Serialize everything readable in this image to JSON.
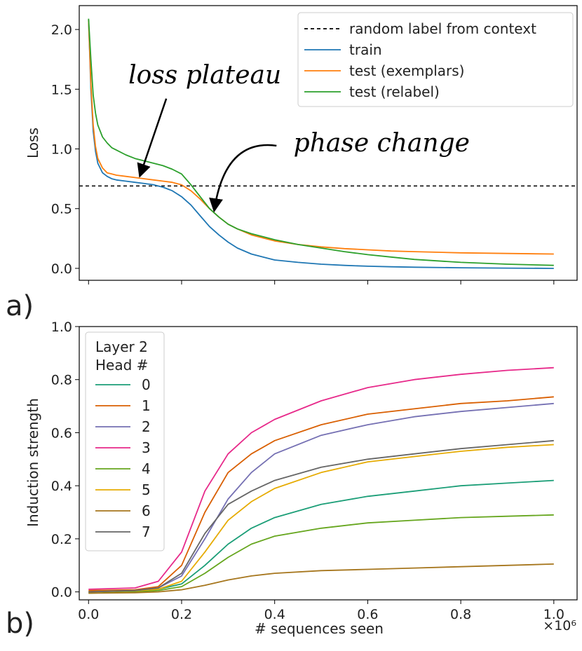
{
  "panel_labels": {
    "a": "a)",
    "b": "b)"
  },
  "chart_data": [
    {
      "type": "line",
      "ylabel": "Loss",
      "xlabel": "",
      "xlim": [
        -0.02,
        1.05
      ],
      "ylim": [
        -0.1,
        2.2
      ],
      "xticks": [
        0.0,
        0.2,
        0.4,
        0.6,
        0.8,
        1.0
      ],
      "show_xtick_labels": false,
      "yticks": [
        0.0,
        0.5,
        1.0,
        1.5,
        2.0
      ],
      "ytick_labels": [
        "0.0",
        "0.5",
        "1.0",
        "1.5",
        "2.0"
      ],
      "grid": false,
      "legend_position": "top-right",
      "hline": {
        "name": "random label from context",
        "y": 0.69,
        "color": "#000000",
        "style": "dashed"
      },
      "annotations": [
        {
          "text": "loss plateau",
          "x_text": 0.25,
          "y_text": 1.55,
          "x_arrow": 0.11,
          "y_arrow": 0.77
        },
        {
          "text": "phase change",
          "x_text": 0.63,
          "y_text": 0.98,
          "x_arrow": 0.27,
          "y_arrow": 0.48
        }
      ],
      "series": [
        {
          "name": "train",
          "color": "#1f77b4",
          "x": [
            0.0,
            0.005,
            0.01,
            0.015,
            0.02,
            0.03,
            0.04,
            0.05,
            0.06,
            0.08,
            0.1,
            0.12,
            0.14,
            0.16,
            0.18,
            0.2,
            0.22,
            0.24,
            0.26,
            0.28,
            0.3,
            0.32,
            0.35,
            0.4,
            0.45,
            0.5,
            0.55,
            0.6,
            0.65,
            0.7,
            0.8,
            0.9,
            1.0
          ],
          "y": [
            2.08,
            1.5,
            1.15,
            0.98,
            0.88,
            0.8,
            0.77,
            0.75,
            0.74,
            0.73,
            0.72,
            0.71,
            0.7,
            0.68,
            0.65,
            0.6,
            0.53,
            0.44,
            0.35,
            0.28,
            0.22,
            0.17,
            0.12,
            0.07,
            0.05,
            0.035,
            0.025,
            0.018,
            0.013,
            0.01,
            0.005,
            0.002,
            0.0
          ]
        },
        {
          "name": "test (exemplars)",
          "color": "#ff7f0e",
          "x": [
            0.0,
            0.005,
            0.01,
            0.015,
            0.02,
            0.03,
            0.04,
            0.05,
            0.06,
            0.08,
            0.1,
            0.12,
            0.14,
            0.16,
            0.18,
            0.2,
            0.22,
            0.24,
            0.26,
            0.28,
            0.3,
            0.32,
            0.35,
            0.4,
            0.45,
            0.5,
            0.55,
            0.6,
            0.65,
            0.7,
            0.8,
            0.9,
            1.0
          ],
          "y": [
            2.08,
            1.55,
            1.2,
            1.02,
            0.92,
            0.84,
            0.8,
            0.79,
            0.78,
            0.77,
            0.76,
            0.75,
            0.74,
            0.73,
            0.72,
            0.7,
            0.65,
            0.58,
            0.5,
            0.43,
            0.37,
            0.33,
            0.28,
            0.23,
            0.2,
            0.18,
            0.165,
            0.155,
            0.145,
            0.14,
            0.13,
            0.125,
            0.12
          ]
        },
        {
          "name": "test (relabel)",
          "color": "#2ca02c",
          "x": [
            0.0,
            0.005,
            0.01,
            0.015,
            0.02,
            0.03,
            0.04,
            0.05,
            0.06,
            0.08,
            0.1,
            0.12,
            0.14,
            0.16,
            0.18,
            0.2,
            0.22,
            0.24,
            0.26,
            0.28,
            0.3,
            0.32,
            0.35,
            0.4,
            0.45,
            0.5,
            0.55,
            0.6,
            0.65,
            0.7,
            0.8,
            0.9,
            1.0
          ],
          "y": [
            2.09,
            1.75,
            1.45,
            1.3,
            1.2,
            1.1,
            1.05,
            1.01,
            0.99,
            0.95,
            0.92,
            0.9,
            0.88,
            0.86,
            0.83,
            0.79,
            0.7,
            0.6,
            0.5,
            0.43,
            0.37,
            0.33,
            0.29,
            0.24,
            0.2,
            0.17,
            0.14,
            0.115,
            0.095,
            0.075,
            0.05,
            0.035,
            0.025
          ]
        }
      ]
    },
    {
      "type": "line",
      "ylabel": "Induction strength",
      "xlabel": "# sequences seen",
      "x_scale_label": "×10⁶",
      "xlim": [
        -0.02,
        1.05
      ],
      "ylim": [
        -0.03,
        1.0
      ],
      "xticks": [
        0.0,
        0.2,
        0.4,
        0.6,
        0.8,
        1.0
      ],
      "xtick_labels": [
        "0.0",
        "0.2",
        "0.4",
        "0.6",
        "0.8",
        "1.0"
      ],
      "yticks": [
        0.0,
        0.2,
        0.4,
        0.6,
        0.8,
        1.0
      ],
      "ytick_labels": [
        "0.0",
        "0.2",
        "0.4",
        "0.6",
        "0.8",
        "1.0"
      ],
      "grid": false,
      "legend_title": [
        "Layer 2",
        "Head #"
      ],
      "legend_position": "top-left",
      "series": [
        {
          "name": "0",
          "color": "#1b9e77",
          "x": [
            0,
            0.1,
            0.15,
            0.2,
            0.25,
            0.3,
            0.35,
            0.4,
            0.5,
            0.6,
            0.7,
            0.8,
            0.9,
            1.0
          ],
          "y": [
            0.0,
            0.005,
            0.01,
            0.03,
            0.1,
            0.18,
            0.24,
            0.28,
            0.33,
            0.36,
            0.38,
            0.4,
            0.41,
            0.42
          ]
        },
        {
          "name": "1",
          "color": "#d95f02",
          "x": [
            0,
            0.1,
            0.15,
            0.2,
            0.25,
            0.3,
            0.35,
            0.4,
            0.5,
            0.6,
            0.7,
            0.8,
            0.9,
            1.0
          ],
          "y": [
            0.005,
            0.008,
            0.02,
            0.1,
            0.3,
            0.45,
            0.52,
            0.57,
            0.63,
            0.67,
            0.69,
            0.71,
            0.72,
            0.735
          ]
        },
        {
          "name": "2",
          "color": "#7570b3",
          "x": [
            0,
            0.1,
            0.15,
            0.2,
            0.25,
            0.3,
            0.35,
            0.4,
            0.5,
            0.6,
            0.7,
            0.8,
            0.9,
            1.0
          ],
          "y": [
            0.0,
            0.005,
            0.015,
            0.06,
            0.2,
            0.35,
            0.45,
            0.52,
            0.59,
            0.63,
            0.66,
            0.68,
            0.695,
            0.71
          ]
        },
        {
          "name": "3",
          "color": "#e7298a",
          "x": [
            0,
            0.1,
            0.15,
            0.2,
            0.25,
            0.3,
            0.35,
            0.4,
            0.5,
            0.6,
            0.7,
            0.8,
            0.9,
            1.0
          ],
          "y": [
            0.01,
            0.015,
            0.04,
            0.15,
            0.38,
            0.52,
            0.6,
            0.65,
            0.72,
            0.77,
            0.8,
            0.82,
            0.835,
            0.845
          ]
        },
        {
          "name": "4",
          "color": "#66a61e",
          "x": [
            0,
            0.1,
            0.15,
            0.2,
            0.25,
            0.3,
            0.35,
            0.4,
            0.5,
            0.6,
            0.7,
            0.8,
            0.9,
            1.0
          ],
          "y": [
            -0.005,
            0.0,
            0.005,
            0.02,
            0.07,
            0.13,
            0.18,
            0.21,
            0.24,
            0.26,
            0.27,
            0.28,
            0.285,
            0.29
          ]
        },
        {
          "name": "5",
          "color": "#e6ab02",
          "x": [
            0,
            0.1,
            0.15,
            0.2,
            0.25,
            0.3,
            0.35,
            0.4,
            0.5,
            0.6,
            0.7,
            0.8,
            0.9,
            1.0
          ],
          "y": [
            0.0,
            0.004,
            0.01,
            0.04,
            0.15,
            0.27,
            0.34,
            0.39,
            0.45,
            0.49,
            0.51,
            0.53,
            0.545,
            0.555
          ]
        },
        {
          "name": "6",
          "color": "#a6761d",
          "x": [
            0,
            0.1,
            0.15,
            0.2,
            0.25,
            0.3,
            0.35,
            0.4,
            0.5,
            0.6,
            0.7,
            0.8,
            0.9,
            1.0
          ],
          "y": [
            -0.005,
            -0.003,
            0.0,
            0.008,
            0.025,
            0.045,
            0.06,
            0.07,
            0.08,
            0.085,
            0.09,
            0.095,
            0.1,
            0.105
          ]
        },
        {
          "name": "7",
          "color": "#666666",
          "x": [
            0,
            0.1,
            0.15,
            0.2,
            0.25,
            0.3,
            0.35,
            0.4,
            0.5,
            0.6,
            0.7,
            0.8,
            0.9,
            1.0
          ],
          "y": [
            0.0,
            0.005,
            0.015,
            0.07,
            0.22,
            0.33,
            0.38,
            0.42,
            0.47,
            0.5,
            0.52,
            0.54,
            0.555,
            0.57
          ]
        }
      ]
    }
  ]
}
